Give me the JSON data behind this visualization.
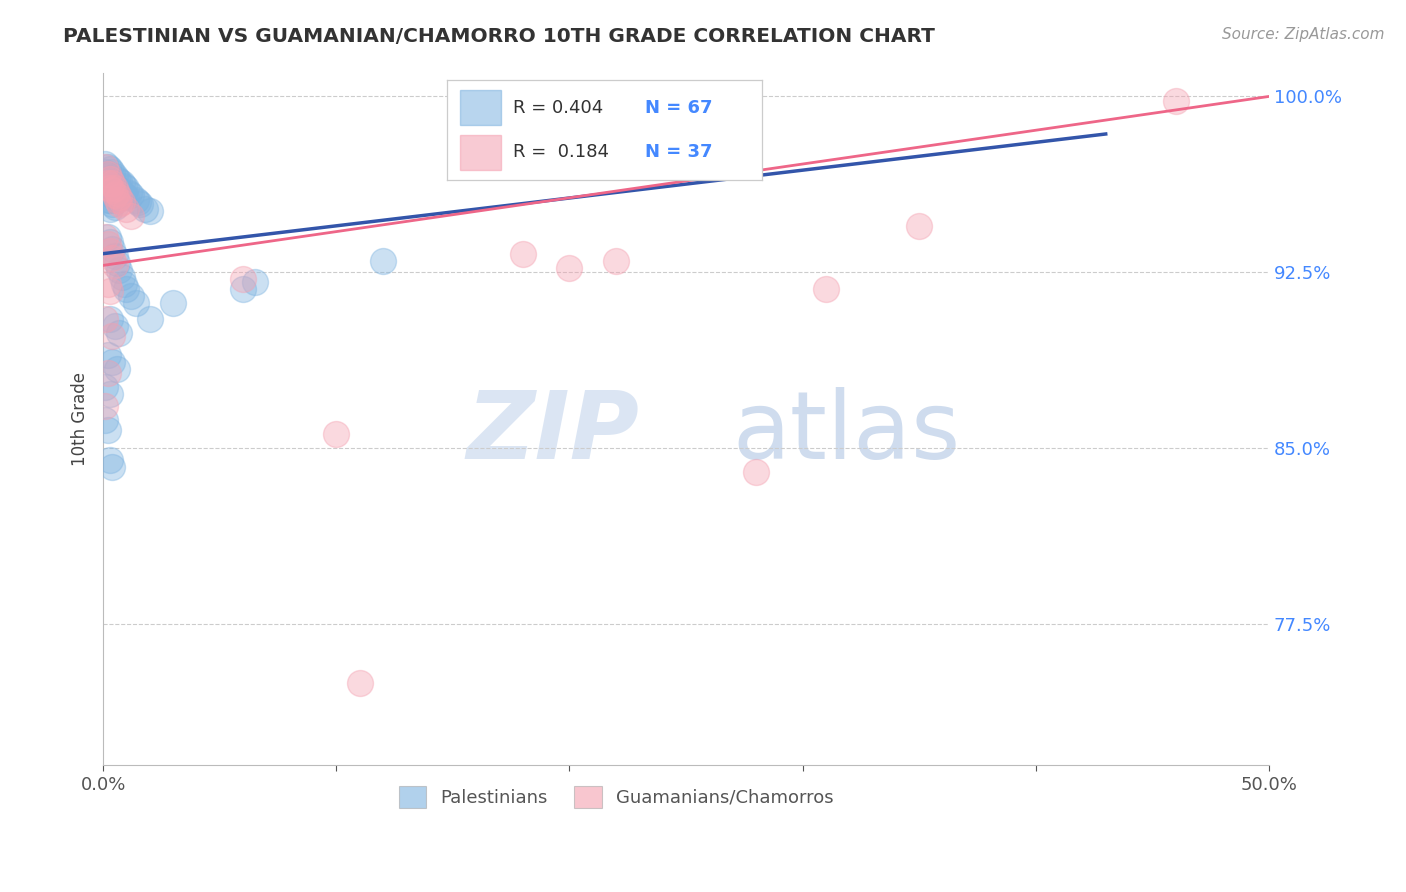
{
  "title": "PALESTINIAN VS GUAMANIAN/CHAMORRO 10TH GRADE CORRELATION CHART",
  "source": "Source: ZipAtlas.com",
  "ylabel": "10th Grade",
  "xlim": [
    0.0,
    0.5
  ],
  "ylim": [
    0.715,
    1.01
  ],
  "xticks": [
    0.0,
    0.1,
    0.2,
    0.3,
    0.4,
    0.5
  ],
  "xticklabels": [
    "0.0%",
    "",
    "",
    "",
    "",
    "50.0%"
  ],
  "ytick_vals": [
    0.775,
    0.85,
    0.925,
    1.0
  ],
  "ytick_labels": [
    "77.5%",
    "85.0%",
    "92.5%",
    "100.0%"
  ],
  "blue_R": 0.404,
  "blue_N": 67,
  "pink_R": 0.184,
  "pink_N": 37,
  "blue_color": "#7EB3E0",
  "pink_color": "#F4A0B0",
  "blue_line_color": "#3355AA",
  "pink_line_color": "#EE6688",
  "legend_label_blue": "Palestinians",
  "legend_label_pink": "Guamanians/Chamorros",
  "watermark_zip": "ZIP",
  "watermark_atlas": "atlas",
  "blue_trendline": [
    [
      0.0,
      0.933
    ],
    [
      0.43,
      0.984
    ]
  ],
  "pink_trendline": [
    [
      0.0,
      0.928
    ],
    [
      0.5,
      1.0
    ]
  ],
  "blue_scatter": [
    [
      0.001,
      0.971
    ],
    [
      0.001,
      0.968
    ],
    [
      0.001,
      0.965
    ],
    [
      0.002,
      0.97
    ],
    [
      0.002,
      0.967
    ],
    [
      0.002,
      0.963
    ],
    [
      0.002,
      0.959
    ],
    [
      0.002,
      0.956
    ],
    [
      0.003,
      0.969
    ],
    [
      0.003,
      0.965
    ],
    [
      0.003,
      0.96
    ],
    [
      0.003,
      0.956
    ],
    [
      0.003,
      0.952
    ],
    [
      0.004,
      0.968
    ],
    [
      0.004,
      0.963
    ],
    [
      0.004,
      0.958
    ],
    [
      0.004,
      0.954
    ],
    [
      0.005,
      0.966
    ],
    [
      0.005,
      0.962
    ],
    [
      0.005,
      0.957
    ],
    [
      0.005,
      0.953
    ],
    [
      0.006,
      0.965
    ],
    [
      0.006,
      0.961
    ],
    [
      0.006,
      0.956
    ],
    [
      0.007,
      0.964
    ],
    [
      0.007,
      0.96
    ],
    [
      0.008,
      0.963
    ],
    [
      0.008,
      0.959
    ],
    [
      0.009,
      0.962
    ],
    [
      0.009,
      0.958
    ],
    [
      0.01,
      0.961
    ],
    [
      0.01,
      0.957
    ],
    [
      0.011,
      0.959
    ],
    [
      0.012,
      0.958
    ],
    [
      0.014,
      0.956
    ],
    [
      0.015,
      0.955
    ],
    [
      0.016,
      0.954
    ],
    [
      0.018,
      0.952
    ],
    [
      0.02,
      0.951
    ],
    [
      0.002,
      0.94
    ],
    [
      0.003,
      0.938
    ],
    [
      0.004,
      0.935
    ],
    [
      0.005,
      0.932
    ],
    [
      0.006,
      0.929
    ],
    [
      0.007,
      0.926
    ],
    [
      0.008,
      0.923
    ],
    [
      0.009,
      0.92
    ],
    [
      0.01,
      0.918
    ],
    [
      0.012,
      0.915
    ],
    [
      0.014,
      0.912
    ],
    [
      0.003,
      0.905
    ],
    [
      0.005,
      0.902
    ],
    [
      0.007,
      0.899
    ],
    [
      0.002,
      0.89
    ],
    [
      0.004,
      0.887
    ],
    [
      0.006,
      0.884
    ],
    [
      0.001,
      0.876
    ],
    [
      0.003,
      0.873
    ],
    [
      0.001,
      0.862
    ],
    [
      0.002,
      0.858
    ],
    [
      0.003,
      0.845
    ],
    [
      0.004,
      0.842
    ],
    [
      0.02,
      0.905
    ],
    [
      0.03,
      0.912
    ],
    [
      0.06,
      0.918
    ],
    [
      0.065,
      0.921
    ],
    [
      0.12,
      0.93
    ]
  ],
  "pink_scatter": [
    [
      0.001,
      0.97
    ],
    [
      0.002,
      0.967
    ],
    [
      0.002,
      0.963
    ],
    [
      0.003,
      0.965
    ],
    [
      0.003,
      0.961
    ],
    [
      0.004,
      0.963
    ],
    [
      0.004,
      0.96
    ],
    [
      0.005,
      0.961
    ],
    [
      0.005,
      0.958
    ],
    [
      0.006,
      0.959
    ],
    [
      0.006,
      0.956
    ],
    [
      0.007,
      0.957
    ],
    [
      0.007,
      0.954
    ],
    [
      0.008,
      0.955
    ],
    [
      0.01,
      0.952
    ],
    [
      0.012,
      0.949
    ],
    [
      0.001,
      0.94
    ],
    [
      0.002,
      0.937
    ],
    [
      0.003,
      0.934
    ],
    [
      0.004,
      0.931
    ],
    [
      0.005,
      0.928
    ],
    [
      0.002,
      0.92
    ],
    [
      0.003,
      0.917
    ],
    [
      0.001,
      0.905
    ],
    [
      0.004,
      0.898
    ],
    [
      0.002,
      0.882
    ],
    [
      0.001,
      0.868
    ],
    [
      0.06,
      0.922
    ],
    [
      0.1,
      0.856
    ],
    [
      0.11,
      0.75
    ],
    [
      0.18,
      0.933
    ],
    [
      0.2,
      0.927
    ],
    [
      0.22,
      0.93
    ],
    [
      0.28,
      0.84
    ],
    [
      0.31,
      0.918
    ],
    [
      0.35,
      0.945
    ],
    [
      0.46,
      0.998
    ]
  ]
}
